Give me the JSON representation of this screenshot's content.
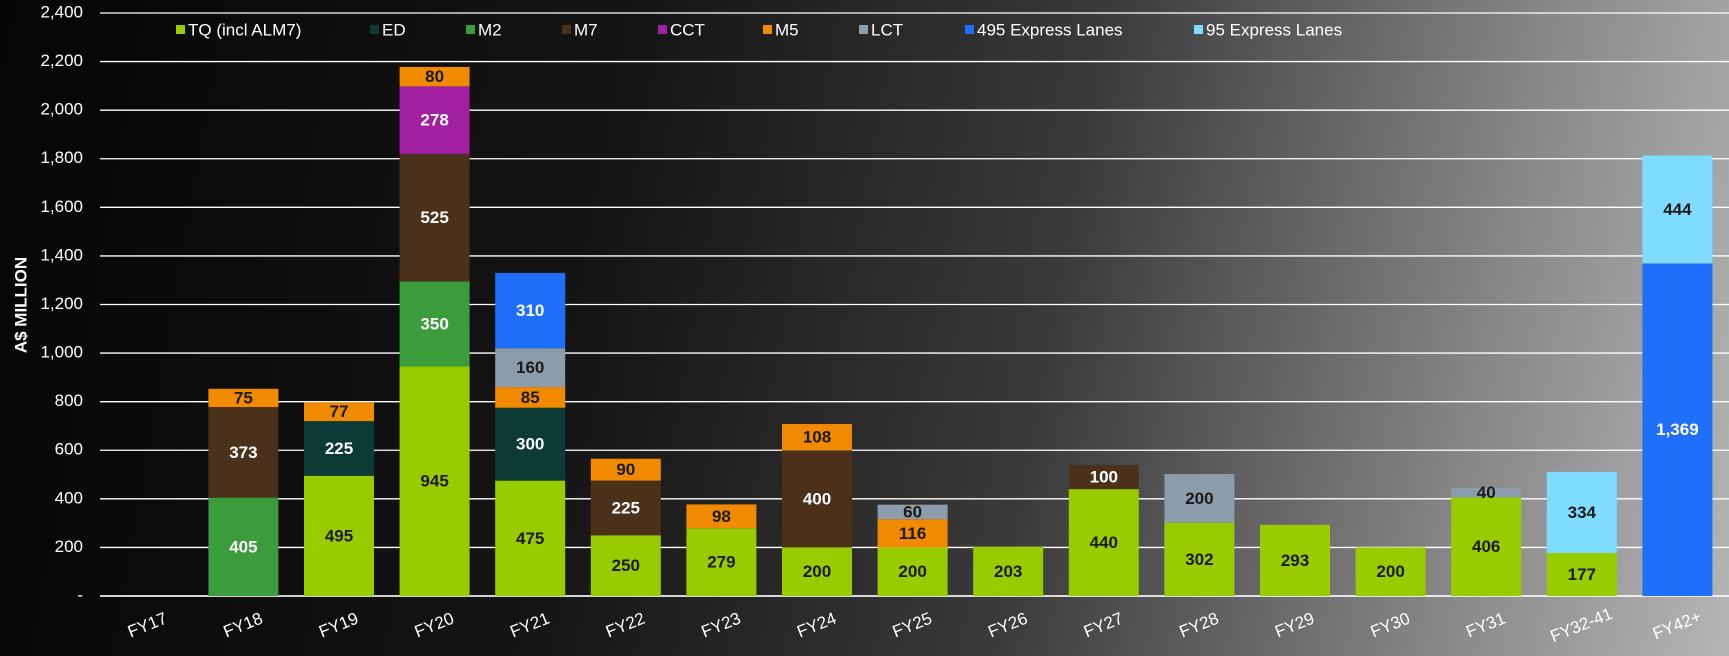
{
  "chart_data": {
    "type": "stacked_bar",
    "y_label": "A$ MILLION",
    "categories": [
      "FY17",
      "FY18",
      "FY19",
      "FY20",
      "FY21",
      "FY22",
      "FY23",
      "FY24",
      "FY25",
      "FY26",
      "FY27",
      "FY28",
      "FY29",
      "FY30",
      "FY31",
      "FY32-41",
      "FY42+"
    ],
    "series": [
      {
        "name": "TQ (incl ALM7)",
        "color": "#99cc00",
        "values": [
          null,
          null,
          495,
          945,
          475,
          250,
          279,
          200,
          200,
          203,
          440,
          302,
          293,
          200,
          406,
          177,
          null
        ]
      },
      {
        "name": "ED",
        "color": "#0c3b36",
        "values": [
          null,
          null,
          225,
          null,
          300,
          null,
          null,
          null,
          null,
          null,
          null,
          null,
          null,
          null,
          null,
          null,
          null
        ]
      },
      {
        "name": "M2",
        "color": "#3a9c3a",
        "values": [
          null,
          405,
          null,
          350,
          null,
          null,
          null,
          null,
          null,
          null,
          null,
          null,
          null,
          null,
          null,
          null,
          null
        ]
      },
      {
        "name": "M7",
        "color": "#4b3119",
        "values": [
          null,
          373,
          null,
          525,
          null,
          225,
          null,
          400,
          null,
          null,
          100,
          null,
          null,
          null,
          null,
          null,
          null
        ]
      },
      {
        "name": "CCT",
        "color": "#a11fa1",
        "values": [
          null,
          null,
          null,
          278,
          null,
          null,
          null,
          null,
          null,
          null,
          null,
          null,
          null,
          null,
          null,
          null,
          null
        ]
      },
      {
        "name": "M5",
        "color": "#f28a00",
        "values": [
          null,
          75,
          77,
          80,
          85,
          90,
          98,
          108,
          116,
          null,
          null,
          null,
          null,
          null,
          null,
          null,
          null
        ]
      },
      {
        "name": "LCT",
        "color": "#8d9cab",
        "values": [
          null,
          null,
          null,
          null,
          160,
          null,
          null,
          null,
          60,
          null,
          null,
          200,
          null,
          null,
          40,
          null,
          null
        ]
      },
      {
        "name": "495 Express Lanes",
        "color": "#1f6ffa",
        "values": [
          null,
          null,
          null,
          null,
          310,
          null,
          null,
          null,
          null,
          null,
          null,
          null,
          null,
          null,
          null,
          null,
          1369
        ],
        "value_labels": [
          null,
          null,
          null,
          null,
          null,
          null,
          null,
          null,
          null,
          null,
          null,
          null,
          null,
          null,
          null,
          null,
          "1,369"
        ]
      },
      {
        "name": "95 Express Lanes",
        "color": "#7fdcff",
        "values": [
          null,
          null,
          null,
          null,
          null,
          null,
          null,
          null,
          null,
          null,
          null,
          null,
          null,
          null,
          null,
          334,
          444
        ]
      }
    ],
    "ylim": [
      0,
      2400
    ],
    "yticks": [
      {
        "value": 0,
        "label": "-"
      },
      200,
      400,
      600,
      800,
      {
        "value": 1000,
        "label": "1,000"
      },
      {
        "value": 1200,
        "label": "1,200"
      },
      {
        "value": 1400,
        "label": "1,400"
      },
      {
        "value": 1600,
        "label": "1,600"
      },
      {
        "value": 1800,
        "label": "1,800"
      },
      {
        "value": 2000,
        "label": "2,000"
      },
      {
        "value": 2200,
        "label": "2,200"
      },
      {
        "value": 2400,
        "label": "2,400"
      }
    ],
    "grid": true
  }
}
